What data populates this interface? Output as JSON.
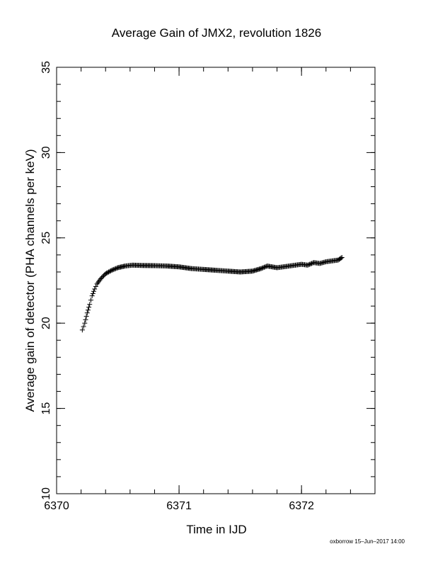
{
  "chart_data": {
    "type": "scatter",
    "title": "Average Gain of JMX2, revolution 1826",
    "xlabel": "Time in IJD",
    "ylabel": "Average gain of detector (PHA channels per keV)",
    "xlim": [
      6370,
      6372.6
    ],
    "ylim": [
      10,
      35
    ],
    "x_ticks": [
      6370,
      6371,
      6372
    ],
    "y_ticks": [
      10,
      15,
      20,
      25,
      30,
      35
    ],
    "grid": false,
    "marker": "plus",
    "series": [
      {
        "points": [
          [
            6370.21,
            19.6
          ],
          [
            6370.23,
            20.0
          ],
          [
            6370.25,
            20.6
          ],
          [
            6370.27,
            21.1
          ],
          [
            6370.29,
            21.6
          ],
          [
            6370.31,
            22.0
          ],
          [
            6370.33,
            22.3
          ],
          [
            6370.36,
            22.6
          ],
          [
            6370.4,
            22.9
          ],
          [
            6370.45,
            23.1
          ],
          [
            6370.5,
            23.25
          ],
          [
            6370.56,
            23.35
          ],
          [
            6370.62,
            23.4
          ],
          [
            6370.7,
            23.38
          ],
          [
            6370.8,
            23.37
          ],
          [
            6370.9,
            23.35
          ],
          [
            6371.0,
            23.3
          ],
          [
            6371.1,
            23.2
          ],
          [
            6371.2,
            23.15
          ],
          [
            6371.3,
            23.1
          ],
          [
            6371.4,
            23.05
          ],
          [
            6371.5,
            23.0
          ],
          [
            6371.6,
            23.05
          ],
          [
            6371.67,
            23.2
          ],
          [
            6371.72,
            23.35
          ],
          [
            6371.76,
            23.3
          ],
          [
            6371.8,
            23.25
          ],
          [
            6371.85,
            23.3
          ],
          [
            6371.9,
            23.35
          ],
          [
            6371.95,
            23.4
          ],
          [
            6372.0,
            23.45
          ],
          [
            6372.05,
            23.4
          ],
          [
            6372.1,
            23.55
          ],
          [
            6372.15,
            23.5
          ],
          [
            6372.2,
            23.6
          ],
          [
            6372.25,
            23.65
          ],
          [
            6372.3,
            23.7
          ],
          [
            6372.33,
            23.85
          ]
        ]
      }
    ]
  },
  "footer": "oxborrow 15–Jun–2017 14:00"
}
